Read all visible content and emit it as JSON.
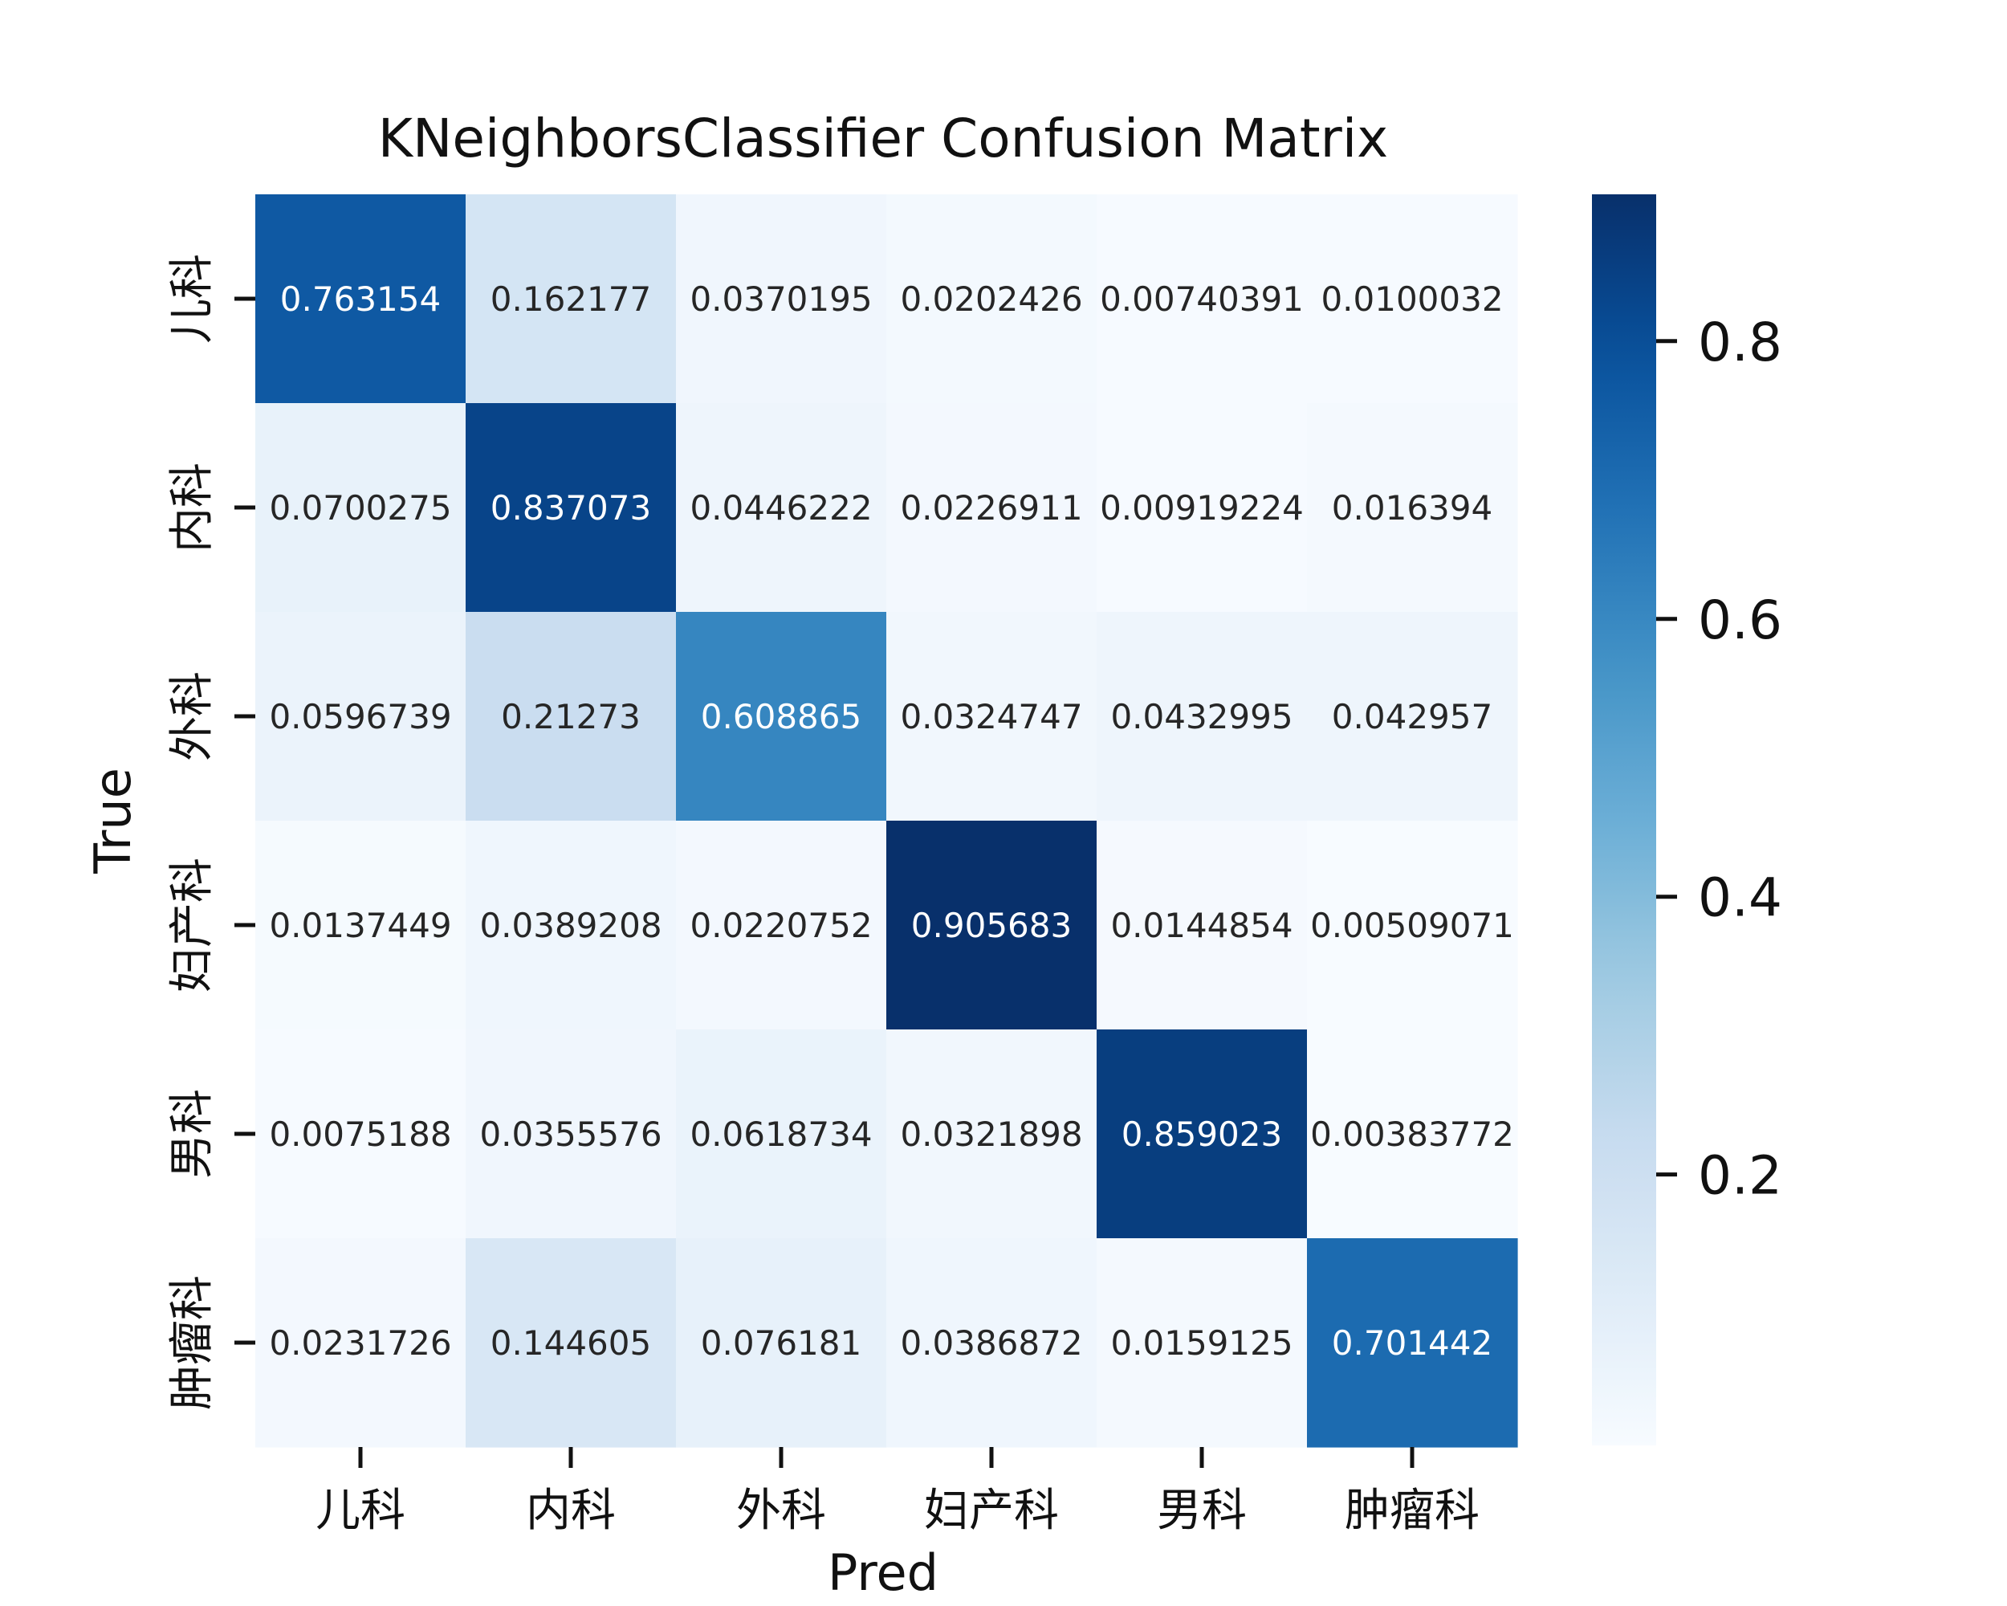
{
  "chart_data": {
    "type": "heatmap",
    "title": "KNeighborsClassifier Confusion Matrix",
    "xlabel": "Pred",
    "ylabel": "True",
    "x_categories": [
      "儿科",
      "内科",
      "外科",
      "妇产科",
      "男科",
      "肿瘤科"
    ],
    "y_categories": [
      "儿科",
      "内科",
      "外科",
      "妇产科",
      "男科",
      "肿瘤科"
    ],
    "values": [
      [
        0.763154,
        0.162177,
        0.0370195,
        0.0202426,
        0.00740391,
        0.0100032
      ],
      [
        0.0700275,
        0.837073,
        0.0446222,
        0.0226911,
        0.00919224,
        0.016394
      ],
      [
        0.0596739,
        0.21273,
        0.608865,
        0.0324747,
        0.0432995,
        0.042957
      ],
      [
        0.0137449,
        0.0389208,
        0.0220752,
        0.905683,
        0.0144854,
        0.00509071
      ],
      [
        0.0075188,
        0.0355576,
        0.0618734,
        0.0321898,
        0.859023,
        0.00383772
      ],
      [
        0.0231726,
        0.144605,
        0.076181,
        0.0386872,
        0.0159125,
        0.701442
      ]
    ],
    "value_labels": [
      [
        "0.763154",
        "0.162177",
        "0.0370195",
        "0.0202426",
        "0.00740391",
        "0.0100032"
      ],
      [
        "0.0700275",
        "0.837073",
        "0.0446222",
        "0.0226911",
        "0.00919224",
        "0.016394"
      ],
      [
        "0.0596739",
        "0.21273",
        "0.608865",
        "0.0324747",
        "0.0432995",
        "0.042957"
      ],
      [
        "0.0137449",
        "0.0389208",
        "0.0220752",
        "0.905683",
        "0.0144854",
        "0.00509071"
      ],
      [
        "0.0075188",
        "0.0355576",
        "0.0618734",
        "0.0321898",
        "0.859023",
        "0.00383772"
      ],
      [
        "0.0231726",
        "0.144605",
        "0.076181",
        "0.0386872",
        "0.0159125",
        "0.701442"
      ]
    ],
    "colormap": "Blues",
    "color_range": [
      0.00383772,
      0.905683
    ],
    "colorbar_ticks": [
      0.2,
      0.4,
      0.6,
      0.8
    ],
    "colorbar_tick_labels": [
      "0.2",
      "0.4",
      "0.6",
      "0.8"
    ],
    "colors": {
      "text_dark": "#262626",
      "text_light": "#ffffff",
      "tick": "#111111"
    }
  }
}
